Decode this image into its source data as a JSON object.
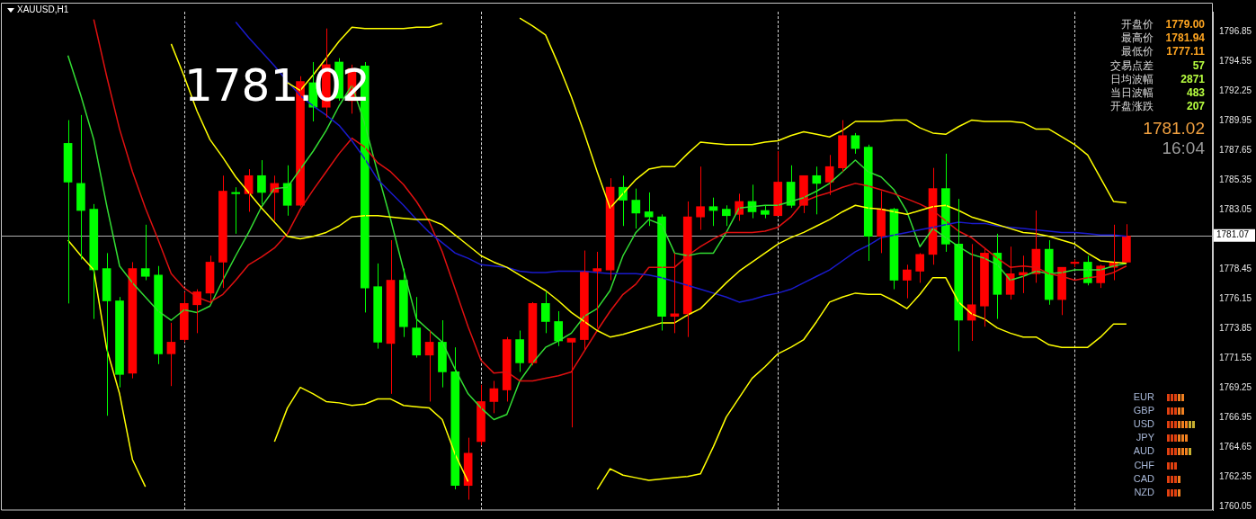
{
  "chart_data": {
    "type": "candlestick",
    "title": "XAUUSD,H1",
    "categories": [
      null,
      null,
      null,
      null,
      null,
      null,
      null,
      null,
      null,
      null,
      null,
      null,
      null,
      null,
      null,
      null,
      null,
      null,
      null,
      null,
      null,
      null,
      null,
      null,
      null,
      null,
      null,
      null,
      null,
      null,
      null,
      null,
      null,
      null,
      null,
      null,
      null,
      null,
      null,
      null,
      null,
      null,
      null,
      null,
      null,
      null,
      null,
      null,
      null,
      null,
      null,
      null,
      null,
      null,
      null,
      null,
      null,
      null,
      null,
      null,
      null,
      null,
      null,
      null,
      null,
      null,
      null,
      null,
      null,
      null,
      null,
      null,
      null,
      null,
      null,
      null,
      null,
      null,
      null,
      null,
      null,
      null,
      null
    ],
    "ohlc": [
      [
        1788.2,
        1790.0,
        1775.8,
        1785.2
      ],
      [
        1785.1,
        1790.4,
        1779.2,
        1783.0
      ],
      [
        1783.1,
        1783.5,
        1774.6,
        1778.4
      ],
      [
        1778.5,
        1779.7,
        1767.1,
        1776.0
      ],
      [
        1776.0,
        1776.3,
        1769.3,
        1770.3
      ],
      [
        1770.4,
        1779.0,
        1770.0,
        1778.5
      ],
      [
        1778.5,
        1781.9,
        1777.6,
        1777.9
      ],
      [
        1778.0,
        1778.7,
        1771.1,
        1771.9
      ],
      [
        1771.9,
        1774.3,
        1769.4,
        1772.8
      ],
      [
        1773.0,
        1776.7,
        1772.8,
        1775.8
      ],
      [
        1775.7,
        1776.9,
        1773.5,
        1776.7
      ],
      [
        1776.6,
        1779.5,
        1775.8,
        1779.0
      ],
      [
        1779.0,
        1785.7,
        1777.0,
        1784.5
      ],
      [
        1784.4,
        1784.8,
        1781.2,
        1784.3
      ],
      [
        1784.3,
        1786.2,
        1782.9,
        1785.7
      ],
      [
        1785.7,
        1786.9,
        1783.5,
        1784.4
      ],
      [
        1784.4,
        1785.7,
        1782.2,
        1785.1
      ],
      [
        1785.1,
        1786.5,
        1782.6,
        1783.4
      ],
      [
        1783.4,
        1793.4,
        1783.3,
        1793.0
      ],
      [
        1792.9,
        1794.5,
        1789.9,
        1791.0
      ],
      [
        1791.0,
        1797.1,
        1790.2,
        1794.3
      ],
      [
        1794.5,
        1794.8,
        1791.5,
        1791.7
      ],
      [
        1791.5,
        1794.3,
        1790.5,
        1794.0
      ],
      [
        1794.2,
        1794.5,
        1775.1,
        1777.0
      ],
      [
        1777.1,
        1778.9,
        1772.3,
        1772.8
      ],
      [
        1772.7,
        1780.7,
        1768.8,
        1777.6
      ],
      [
        1777.6,
        1778.5,
        1773.2,
        1774.0
      ],
      [
        1773.9,
        1776.3,
        1771.6,
        1771.8
      ],
      [
        1771.8,
        1773.7,
        1768.2,
        1772.8
      ],
      [
        1772.8,
        1774.5,
        1769.3,
        1770.5
      ],
      [
        1770.5,
        1772.4,
        1761.4,
        1761.7
      ],
      [
        1761.7,
        1765.4,
        1760.6,
        1764.2
      ],
      [
        1765.1,
        1769.5,
        1764.8,
        1768.2
      ],
      [
        1768.2,
        1769.8,
        1767.3,
        1769.2
      ],
      [
        1769.1,
        1773.2,
        1768.2,
        1773.0
      ],
      [
        1773.0,
        1773.7,
        1770.5,
        1771.2
      ],
      [
        1771.2,
        1775.9,
        1771.0,
        1775.8
      ],
      [
        1775.8,
        1776.7,
        1773.5,
        1774.4
      ],
      [
        1774.4,
        1775.2,
        1772.5,
        1772.9
      ],
      [
        1772.8,
        1773.1,
        1766.2,
        1773.1
      ],
      [
        1773.0,
        1779.9,
        1772.2,
        1778.3
      ],
      [
        1778.3,
        1779.8,
        1773.9,
        1778.5
      ],
      [
        1778.4,
        1785.5,
        1777.6,
        1784.8
      ],
      [
        1784.8,
        1785.7,
        1781.8,
        1783.8
      ],
      [
        1783.8,
        1784.7,
        1781.6,
        1782.8
      ],
      [
        1782.9,
        1784.4,
        1781.8,
        1782.5
      ],
      [
        1782.5,
        1782.7,
        1773.7,
        1774.8
      ],
      [
        1774.8,
        1779.7,
        1773.5,
        1775.0
      ],
      [
        1775.0,
        1783.7,
        1773.2,
        1782.5
      ],
      [
        1782.5,
        1786.4,
        1781.5,
        1783.3
      ],
      [
        1783.3,
        1784.0,
        1781.8,
        1783.0
      ],
      [
        1783.1,
        1783.4,
        1781.8,
        1782.6
      ],
      [
        1782.7,
        1784.3,
        1782.2,
        1783.7
      ],
      [
        1783.7,
        1785.0,
        1782.4,
        1782.9
      ],
      [
        1783.0,
        1783.4,
        1782.4,
        1782.7
      ],
      [
        1782.6,
        1787.6,
        1782.6,
        1785.2
      ],
      [
        1785.2,
        1786.5,
        1783.2,
        1783.4
      ],
      [
        1783.4,
        1785.7,
        1782.8,
        1785.7
      ],
      [
        1785.7,
        1786.4,
        1782.7,
        1785.1
      ],
      [
        1785.2,
        1787.3,
        1784.2,
        1786.4
      ],
      [
        1786.3,
        1790.0,
        1786.0,
        1788.8
      ],
      [
        1788.8,
        1789.0,
        1787.4,
        1787.8
      ],
      [
        1787.9,
        1788.1,
        1779.1,
        1781.0
      ],
      [
        1781.0,
        1784.5,
        1779.7,
        1783.1
      ],
      [
        1783.1,
        1783.2,
        1776.9,
        1777.6
      ],
      [
        1777.6,
        1778.8,
        1776.2,
        1778.4
      ],
      [
        1778.3,
        1779.7,
        1777.4,
        1779.6
      ],
      [
        1779.6,
        1786.3,
        1778.8,
        1784.7
      ],
      [
        1784.7,
        1787.4,
        1779.8,
        1780.4
      ],
      [
        1780.4,
        1783.9,
        1772.1,
        1774.5
      ],
      [
        1774.5,
        1780.4,
        1772.9,
        1775.7
      ],
      [
        1775.6,
        1780.0,
        1774.0,
        1779.7
      ],
      [
        1779.7,
        1781.2,
        1774.6,
        1776.5
      ],
      [
        1776.5,
        1780.2,
        1776.1,
        1778.1
      ],
      [
        1778.0,
        1779.5,
        1776.6,
        1778.2
      ],
      [
        1778.1,
        1783.0,
        1777.4,
        1780.0
      ],
      [
        1780.0,
        1780.7,
        1775.7,
        1776.1
      ],
      [
        1776.1,
        1778.6,
        1774.9,
        1778.6
      ],
      [
        1778.9,
        1779.2,
        1778.6,
        1779.0
      ],
      [
        1779.0,
        1779.5,
        1777.2,
        1777.4
      ],
      [
        1777.4,
        1778.8,
        1777.0,
        1778.7
      ],
      [
        1778.6,
        1781.9,
        1777.6,
        1779.0
      ],
      [
        1779.0,
        1781.94,
        1778.95,
        1781.02
      ]
    ],
    "colors": [
      "#00ff00",
      "#00ff00",
      "#00ff00",
      "#00ff00",
      "#00ff00",
      "#ff0000",
      "#00ff00",
      "#00ff00",
      "#ff0000",
      "#ff0000",
      "#ff0000",
      "#ff0000",
      "#ff0000",
      "#00ff00",
      "#ff0000",
      "#00ff00",
      "#ff0000",
      "#00ff00",
      "#ff0000",
      "#00ff00",
      "#ff0000",
      "#00ff00",
      "#ff0000",
      "#00ff00",
      "#00ff00",
      "#ff0000",
      "#00ff00",
      "#00ff00",
      "#ff0000",
      "#00ff00",
      "#00ff00",
      "#ff0000",
      "#ff0000",
      "#ff0000",
      "#ff0000",
      "#00ff00",
      "#ff0000",
      "#00ff00",
      "#00ff00",
      "#ff0000",
      "#ff0000",
      "#ff0000",
      "#ff0000",
      "#00ff00",
      "#00ff00",
      "#00ff00",
      "#00ff00",
      "#ff0000",
      "#ff0000",
      "#ff0000",
      "#00ff00",
      "#00ff00",
      "#ff0000",
      "#00ff00",
      "#00ff00",
      "#ff0000",
      "#00ff00",
      "#ff0000",
      "#00ff00",
      "#ff0000",
      "#ff0000",
      "#00ff00",
      "#00ff00",
      "#ff0000",
      "#00ff00",
      "#ff0000",
      "#ff0000",
      "#ff0000",
      "#00ff00",
      "#00ff00",
      "#ff0000",
      "#ff0000",
      "#00ff00",
      "#ff0000",
      "#ff0000",
      "#ff0000",
      "#00ff00",
      "#ff0000",
      "#ff0000",
      "#00ff00",
      "#ff0000",
      "#ff0000",
      "#ff0000"
    ],
    "series": [
      {
        "type": "line",
        "color": "#ffff00",
        "values": [
          null,
          null,
          null,
          null,
          null,
          null,
          null,
          null,
          null,
          null,
          null,
          null,
          null,
          null,
          null,
          null,
          null,
          1792.9,
          1792.3,
          1793.5,
          1794.8,
          1796.1,
          1797.2,
          1797.1,
          1797.1,
          1797.1,
          1797.1,
          1797.2,
          1797.2,
          1797.5,
          null,
          null,
          null,
          null,
          null,
          1797.9,
          1797.3,
          1796.6,
          1794.3,
          1791.8,
          1789.0,
          1786.0,
          1783.2,
          1784.3,
          1785.4,
          1786.2,
          1786.4,
          1786.4,
          1787.4,
          1788.3,
          1788.2,
          1788.1,
          1788.1,
          1788.1,
          1788.3,
          1788.4,
          1788.8,
          1789.1,
          1788.9,
          1788.7,
          1789.2,
          1789.9,
          1789.9,
          1789.9,
          1790.0,
          1790.0,
          1789.4,
          1789.0,
          1788.9,
          1789.5,
          1790.0,
          1789.9,
          1789.9,
          1789.9,
          1789.8,
          1789.3,
          1789.3,
          1788.7,
          1788.1,
          1787.3,
          1785.5,
          1783.7,
          1783.6
        ]
      },
      {
        "type": "line",
        "color": "#ffff00",
        "values": [
          null,
          null,
          null,
          null,
          null,
          null,
          null,
          null,
          1795.9,
          1793.4,
          1790.7,
          1788.5,
          1787.1,
          1785.6,
          1784.4,
          1783.2,
          1782.1,
          1781.0,
          1780.8,
          1781.0,
          1781.3,
          1781.8,
          1782.5,
          1782.6,
          1782.6,
          1782.5,
          1782.4,
          1782.3,
          1782.3,
          1781.9,
          1781.1,
          1780.3,
          1779.5,
          1779.0,
          1778.6,
          1778.0,
          1777.4,
          1776.8,
          1776.0,
          1775.1,
          1774.4,
          1773.7,
          1773.2,
          1773.4,
          1773.7,
          1774.0,
          1774.3,
          1774.3,
          1774.9,
          1775.4,
          1776.4,
          1777.4,
          1778.3,
          1779.0,
          1779.7,
          1780.4,
          1780.9,
          1781.3,
          1781.8,
          1782.3,
          1782.9,
          1783.4,
          1783.2,
          1783.1,
          1782.9,
          1782.7,
          1783.0,
          1783.3,
          1783.4,
          1783.0,
          1782.5,
          1782.2,
          1781.9,
          1781.6,
          1781.3,
          1781.2,
          1781.0,
          1780.7,
          1780.4,
          1779.7,
          1779.1,
          1779.0,
          1778.9
        ]
      },
      {
        "type": "line",
        "color": "#ffff00",
        "values": [
          1780.7,
          1779.5,
          1778.4,
          1772.3,
          1768.8,
          1763.7,
          1761.6,
          null,
          null,
          null,
          null,
          null,
          null,
          null,
          null,
          null,
          1765.1,
          1767.7,
          1769.3,
          1768.8,
          1768.2,
          1768.1,
          1767.9,
          1768.0,
          1768.4,
          1768.4,
          1767.9,
          1767.8,
          1767.7,
          1766.8,
          1764.1,
          1762.0,
          null,
          null,
          null,
          null,
          null,
          null,
          null,
          null,
          null,
          1761.4,
          1763.0,
          1762.5,
          1762.3,
          1762.1,
          1762.2,
          1762.3,
          1762.4,
          1762.6,
          1764.7,
          1767.0,
          1768.5,
          1770.0,
          1770.9,
          1771.9,
          1772.4,
          1773.0,
          1774.4,
          1775.9,
          1776.3,
          1776.6,
          1776.5,
          1776.5,
          1776.0,
          1775.4,
          1776.5,
          1777.8,
          1777.8,
          1775.9,
          1775.0,
          1774.6,
          1773.9,
          1773.5,
          1773.2,
          1773.2,
          1772.6,
          1772.4,
          1772.4,
          1772.4,
          1773.2,
          1774.2,
          1774.2
        ]
      },
      {
        "type": "line",
        "color": "#1a1acc",
        "values": [
          null,
          null,
          null,
          null,
          null,
          null,
          null,
          null,
          null,
          null,
          null,
          null,
          null,
          1797.6,
          1796.4,
          1795.3,
          1794.2,
          1793.0,
          1791.9,
          1791.1,
          1790.4,
          1789.6,
          1788.4,
          1787.0,
          1785.4,
          1784.4,
          1783.4,
          1782.3,
          1781.3,
          1780.5,
          1779.7,
          1779.3,
          1778.8,
          1778.7,
          1778.6,
          1778.3,
          1778.2,
          1778.2,
          1778.3,
          1778.3,
          1778.3,
          1778.2,
          1778.1,
          1778.1,
          1778.1,
          1778.0,
          1777.8,
          1777.5,
          1777.2,
          1776.9,
          1776.6,
          1776.3,
          1775.9,
          1776.1,
          1776.4,
          1776.6,
          1776.9,
          1777.4,
          1777.9,
          1778.4,
          1779.1,
          1779.8,
          1780.3,
          1780.9,
          1781.1,
          1781.3,
          1781.5,
          1781.7,
          1781.9,
          1782.1,
          1782.0,
          1782.0,
          1781.8,
          1781.7,
          1781.6,
          1781.5,
          1781.4,
          1781.3,
          1781.3,
          1781.2,
          1781.1,
          1781.1,
          1781.0
        ]
      },
      {
        "type": "line",
        "color": "#e01010",
        "values": [
          null,
          null,
          1797.8,
          1793.4,
          1789.3,
          1786.0,
          1783.2,
          1780.7,
          1778.1,
          1777.0,
          1776.3,
          1775.9,
          1776.5,
          1777.6,
          1778.8,
          1779.4,
          1780.1,
          1781.2,
          1783.1,
          1784.6,
          1786.0,
          1787.4,
          1788.6,
          1787.9,
          1786.7,
          1786.0,
          1785.0,
          1783.7,
          1782.1,
          1779.8,
          1776.9,
          1774.0,
          1771.4,
          1770.4,
          1770.5,
          1769.8,
          1769.8,
          1770.0,
          1770.2,
          1770.5,
          1772.1,
          1773.7,
          1775.2,
          1776.5,
          1777.3,
          1778.6,
          1778.6,
          1778.6,
          1779.5,
          1780.2,
          1780.8,
          1781.3,
          1781.3,
          1781.3,
          1781.4,
          1781.7,
          1782.5,
          1783.7,
          1784.1,
          1784.4,
          1784.8,
          1785.1,
          1784.9,
          1784.6,
          1784.3,
          1783.9,
          1783.5,
          1783.0,
          1782.2,
          1781.4,
          1780.9,
          1780.1,
          1779.3,
          1778.6,
          1778.7,
          1778.6,
          1778.1,
          1777.9,
          1777.6,
          1777.8,
          1777.9,
          1778.2,
          1778.7
        ]
      },
      {
        "type": "line",
        "color": "#33dd33",
        "values": [
          1795.0,
          1791.9,
          1788.5,
          1783.4,
          1778.7,
          1777.4,
          1776.3,
          1775.2,
          1774.5,
          1775.3,
          1775.1,
          1775.6,
          1777.6,
          1779.5,
          1781.3,
          1783.3,
          1784.7,
          1784.8,
          1786.2,
          1787.6,
          1789.2,
          1791.1,
          1792.7,
          1789.7,
          1785.9,
          1782.3,
          1778.4,
          1774.6,
          1773.7,
          1772.8,
          1770.7,
          1768.8,
          1767.7,
          1766.8,
          1767.2,
          1769.8,
          1771.2,
          1772.4,
          1772.9,
          1773.5,
          1774.8,
          1775.4,
          1776.8,
          1779.5,
          1781.3,
          1782.3,
          1781.9,
          1779.7,
          1779.5,
          1779.7,
          1779.7,
          1781.3,
          1783.2,
          1783.3,
          1783.4,
          1783.4,
          1783.7,
          1784.0,
          1784.5,
          1785.1,
          1786.0,
          1786.9,
          1786.0,
          1785.6,
          1784.6,
          1782.9,
          1780.2,
          1781.6,
          1780.9,
          1780.2,
          1779.6,
          1779.3,
          1778.8,
          1777.6,
          1777.9,
          1778.3,
          1778.1,
          1778.2,
          1778.4,
          1778.4,
          1778.4,
          1778.7,
          1778.9
        ]
      }
    ],
    "ylim": [
      1759.8,
      1798.4
    ],
    "yticks": [
      1760.05,
      1762.35,
      1764.65,
      1766.95,
      1769.25,
      1771.55,
      1773.85,
      1776.15,
      1778.45,
      1783.05,
      1785.35,
      1787.65,
      1789.95,
      1792.25,
      1794.55,
      1796.85
    ],
    "grid": "x",
    "legend": false,
    "marker": "none",
    "line_style": "solid",
    "tick_labels": "y",
    "ref_lines": [
      {
        "axis": "y",
        "value": 1781.07,
        "label": "1781.07",
        "color": "#b0b0b0"
      }
    ],
    "annotations": [
      "1781.02",
      "开盘价",
      "1779.00",
      "最高价",
      "1781.94",
      "最低价",
      "1777.11",
      "交易点差",
      "57",
      "日均波幅",
      "2871",
      "当日波幅",
      "483",
      "开盘涨跌",
      "207",
      "1781.02",
      "16:04",
      "EUR",
      "GBP",
      "USD",
      "JPY",
      "AUD",
      "CHF",
      "CAD",
      "NZD"
    ]
  }
}
